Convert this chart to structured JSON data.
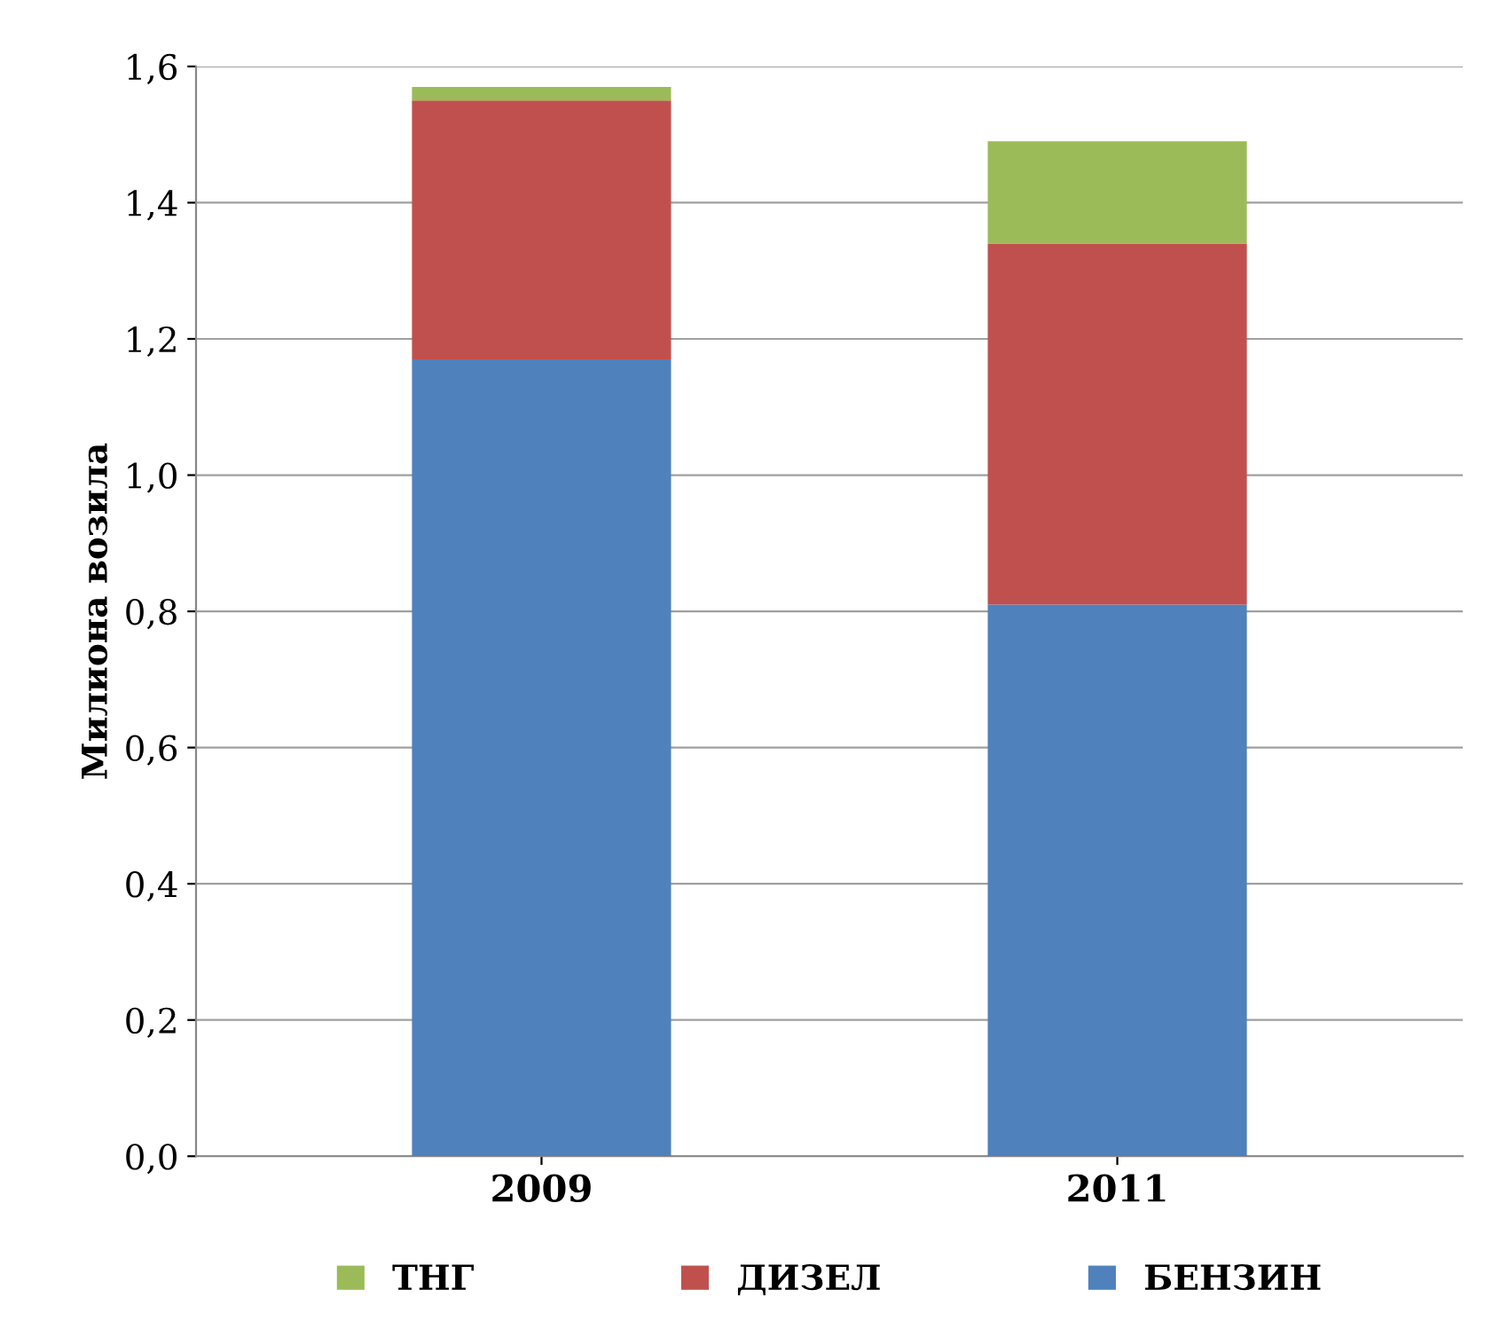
{
  "chart_data": {
    "type": "bar",
    "stacked": true,
    "ylabel": "Милиона возила",
    "categories": [
      "2009",
      "2011"
    ],
    "series": [
      {
        "name": "БЕНЗИН",
        "color": "#4f81bd",
        "values": [
          1.17,
          0.81
        ]
      },
      {
        "name": "ДИЗЕЛ",
        "color": "#c0504d",
        "values": [
          0.38,
          0.53
        ]
      },
      {
        "name": "ТНГ",
        "color": "#9bbb59",
        "values": [
          0.02,
          0.15
        ]
      }
    ],
    "ylim": [
      0,
      1.6
    ],
    "yticks": [
      {
        "value": 0,
        "label": "0,0"
      },
      {
        "value": 0.2,
        "label": "0,2"
      },
      {
        "value": 0.4,
        "label": "0,4"
      },
      {
        "value": 0.6,
        "label": "0,6"
      },
      {
        "value": 0.8,
        "label": "0,8"
      },
      {
        "value": 1.0,
        "label": "1,0"
      },
      {
        "value": 1.2,
        "label": "1,2"
      },
      {
        "value": 1.4,
        "label": "1,4"
      },
      {
        "value": 1.6,
        "label": "1,6"
      }
    ],
    "grid": "y",
    "legend": "bottom"
  }
}
